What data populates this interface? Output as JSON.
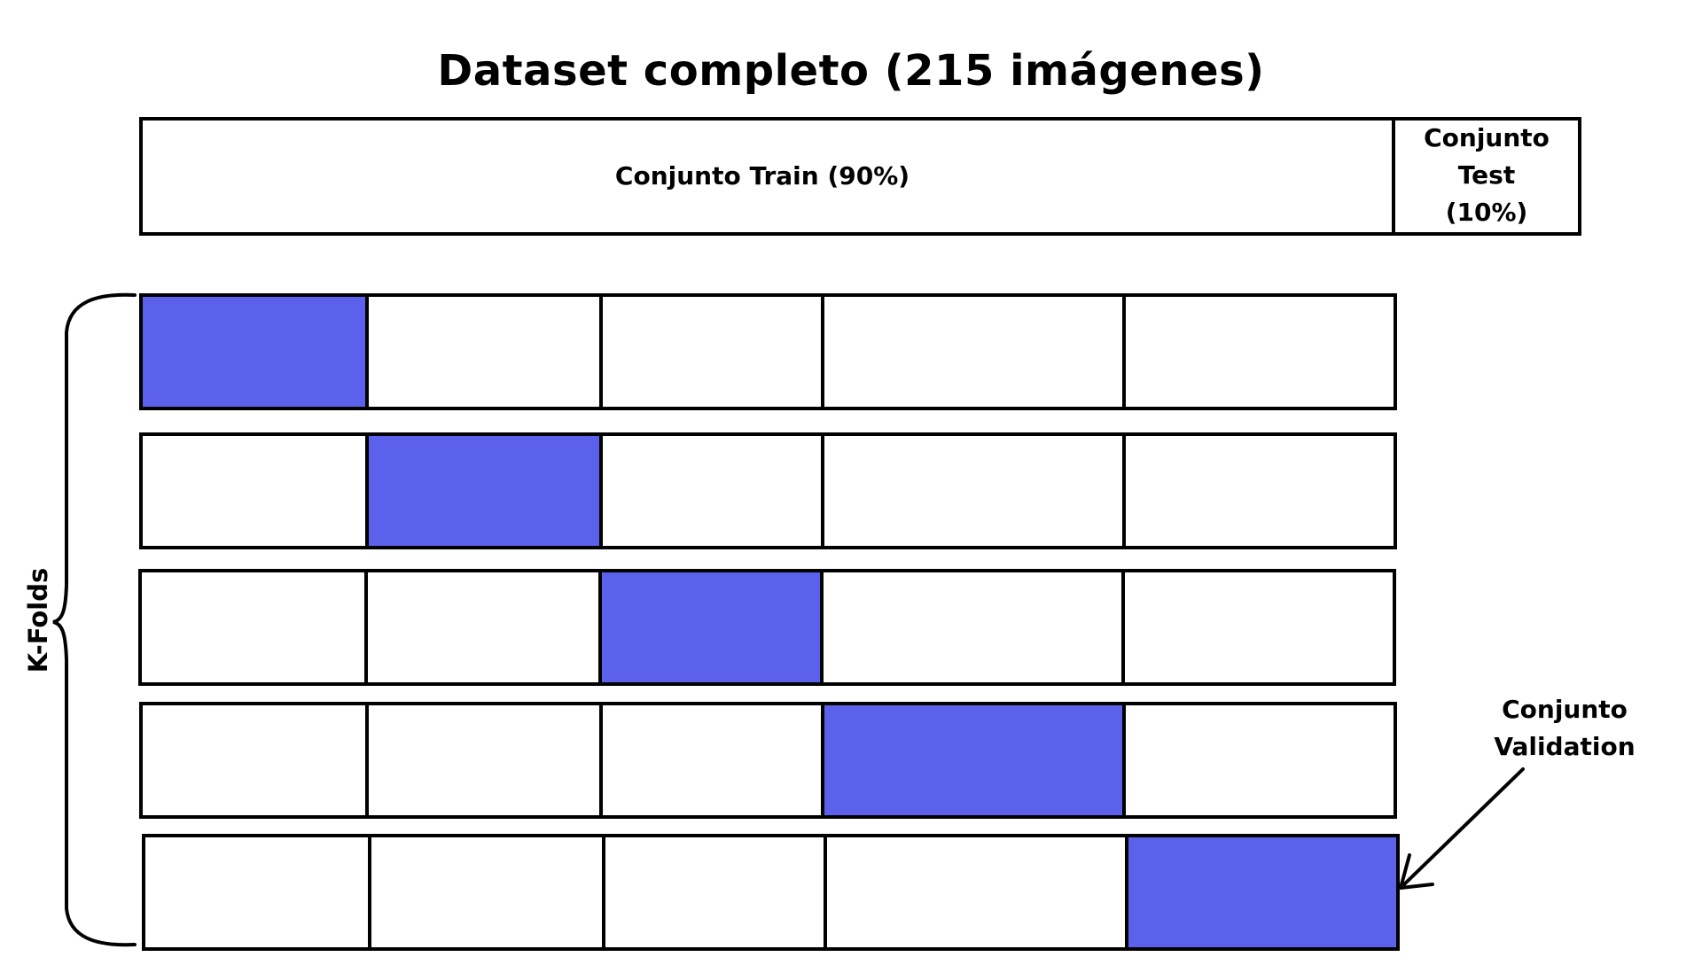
{
  "title": "Dataset completo (215 imágenes)",
  "split": {
    "train_label": "Conjunto Train (90%)",
    "test_label_lines": [
      "Conjunto",
      "Test",
      "(10%)"
    ],
    "train_fraction": 0.9,
    "test_fraction": 0.1
  },
  "kfolds": {
    "label": "K-Folds",
    "fold_count": 5,
    "validation_fold_index": [
      0,
      1,
      2,
      3,
      4
    ]
  },
  "validation_label_lines": [
    "Conjunto",
    "Validation"
  ],
  "colors": {
    "validation": "#5b61eb",
    "background": "#ffffff",
    "stroke": "#000000"
  }
}
